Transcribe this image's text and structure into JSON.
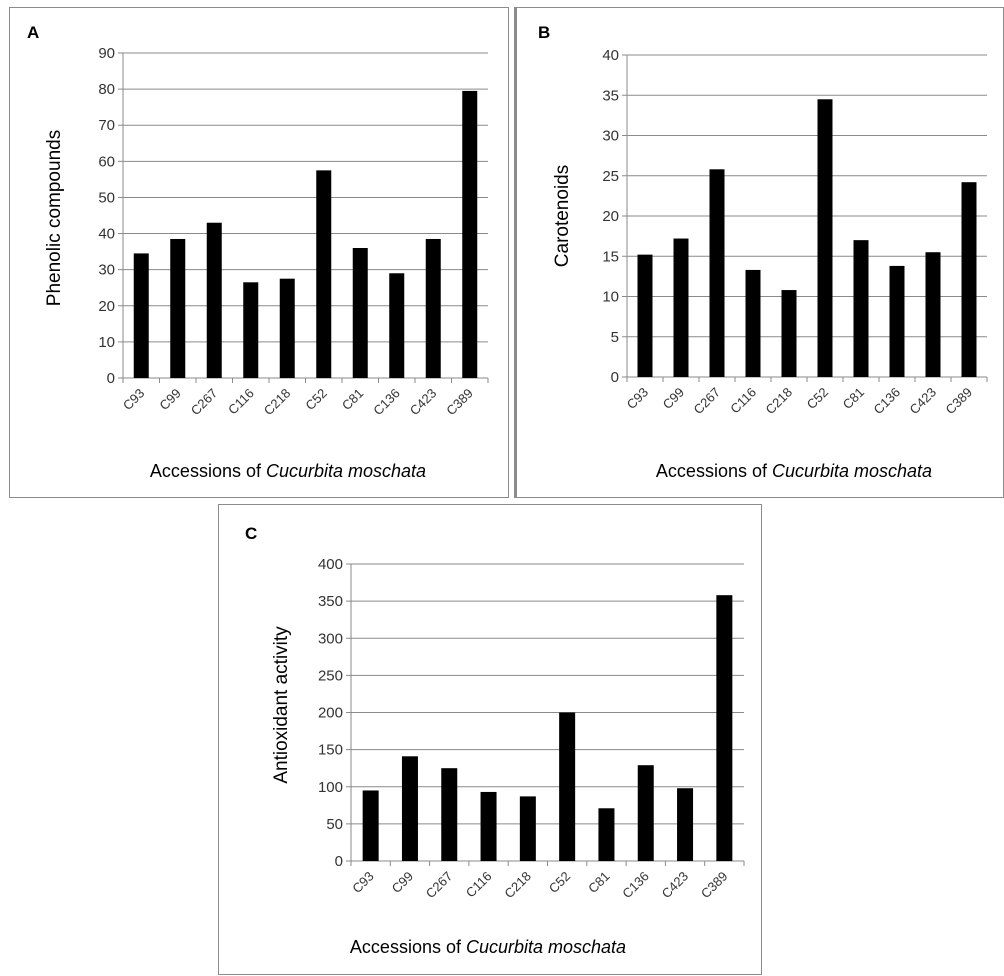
{
  "chart_data": [
    {
      "type": "bar",
      "panel": "A",
      "categories": [
        "C93",
        "C99",
        "C267",
        "C116",
        "C218",
        "C52",
        "C81",
        "C136",
        "C423",
        "C389"
      ],
      "values": [
        34.5,
        38.5,
        43,
        26.5,
        27.5,
        57.5,
        36,
        29,
        38.5,
        79.5
      ],
      "ylabel": "Phenolic  compounds",
      "xlabel": "Accessions of ",
      "xlabel_italic": "Cucurbita moschata",
      "ylim": [
        0,
        90
      ],
      "yticks": [
        "0",
        "10",
        "20",
        "30",
        "40",
        "50",
        "60",
        "70",
        "80",
        "90"
      ],
      "grid": true,
      "bar_color": "#000000"
    },
    {
      "type": "bar",
      "panel": "B",
      "categories": [
        "C93",
        "C99",
        "C267",
        "C116",
        "C218",
        "C52",
        "C81",
        "C136",
        "C423",
        "C389"
      ],
      "values": [
        15.2,
        17.2,
        25.8,
        13.3,
        10.8,
        34.5,
        17,
        13.8,
        15.5,
        24.2
      ],
      "ylabel": "Carotenoids",
      "xlabel": "Accessions of ",
      "xlabel_italic": "Cucurbita moschata",
      "ylim": [
        0,
        40
      ],
      "yticks": [
        "0",
        "5",
        "10",
        "15",
        "20",
        "25",
        "30",
        "35",
        "40"
      ],
      "grid": true,
      "bar_color": "#000000"
    },
    {
      "type": "bar",
      "panel": "C",
      "categories": [
        "C93",
        "C99",
        "C267",
        "C116",
        "C218",
        "C52",
        "C81",
        "C136",
        "C423",
        "C389"
      ],
      "values": [
        95,
        141,
        125,
        93,
        87,
        200,
        71,
        129,
        98,
        358
      ],
      "ylabel": "Antioxidant  activity",
      "xlabel": "Accessions of ",
      "xlabel_italic": "Cucurbita moschata",
      "ylim": [
        0,
        400
      ],
      "yticks": [
        "0",
        "50",
        "100",
        "150",
        "200",
        "250",
        "300",
        "350",
        "400"
      ],
      "grid": true,
      "bar_color": "#000000"
    }
  ]
}
